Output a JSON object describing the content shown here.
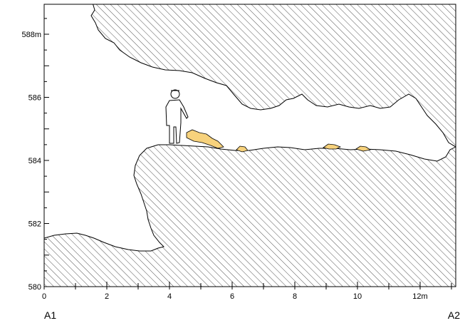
{
  "profile": {
    "y_axis": {
      "unit_label": "m",
      "ticks": [
        {
          "value": 588,
          "label": "588m"
        },
        {
          "value": 586,
          "label": "586"
        },
        {
          "value": 584,
          "label": "584"
        },
        {
          "value": 582,
          "label": "582"
        },
        {
          "value": 580,
          "label": "580"
        }
      ],
      "range": [
        580,
        589
      ]
    },
    "x_axis": {
      "ticks": [
        {
          "value": 0,
          "label": "0"
        },
        {
          "value": 2,
          "label": "2"
        },
        {
          "value": 4,
          "label": "4"
        },
        {
          "value": 6,
          "label": "6"
        },
        {
          "value": 8,
          "label": "8"
        },
        {
          "value": 10,
          "label": "10"
        },
        {
          "value": 12,
          "label": "12m"
        }
      ],
      "range": [
        0,
        13
      ]
    },
    "section_ends": {
      "start": "A1",
      "end": "A2"
    },
    "colors": {
      "rock_hatch": "#555555",
      "deposit_fill": "#f7d27c",
      "outline": "#000000"
    },
    "icons": {
      "scale_figure": "person-icon"
    }
  }
}
